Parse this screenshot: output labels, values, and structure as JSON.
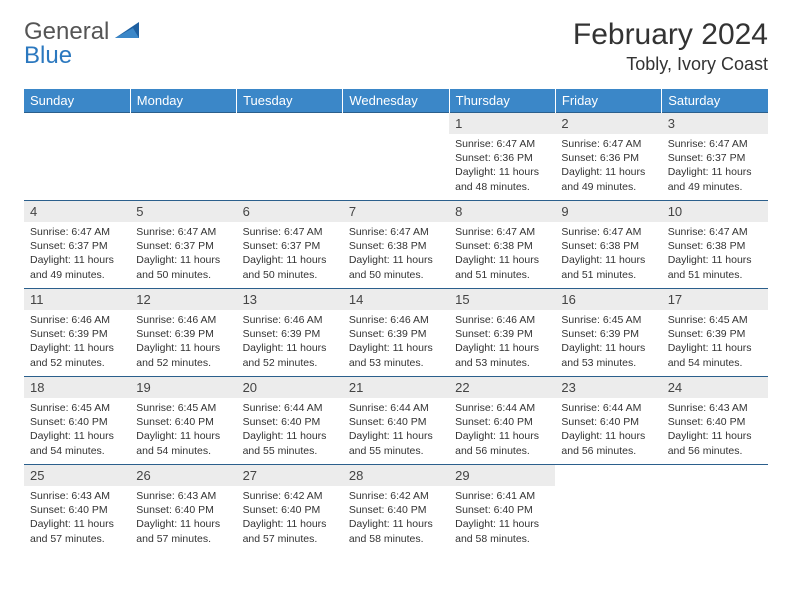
{
  "brand": {
    "part1": "General",
    "part2": "Blue"
  },
  "title": "February 2024",
  "location": "Tobly, Ivory Coast",
  "colors": {
    "header_bg": "#3b87c8",
    "header_text": "#ffffff",
    "row_border": "#2b5f8c",
    "daynum_bg": "#ececec",
    "brand_blue": "#2b78bf",
    "page_bg": "#ffffff",
    "text": "#333333"
  },
  "weekdays": [
    "Sunday",
    "Monday",
    "Tuesday",
    "Wednesday",
    "Thursday",
    "Friday",
    "Saturday"
  ],
  "layout": {
    "columns": 7,
    "first_day_index": 4,
    "num_days": 29
  },
  "days": [
    {
      "n": 1,
      "sunrise": "6:47 AM",
      "sunset": "6:36 PM",
      "daylight": "11 hours and 48 minutes."
    },
    {
      "n": 2,
      "sunrise": "6:47 AM",
      "sunset": "6:36 PM",
      "daylight": "11 hours and 49 minutes."
    },
    {
      "n": 3,
      "sunrise": "6:47 AM",
      "sunset": "6:37 PM",
      "daylight": "11 hours and 49 minutes."
    },
    {
      "n": 4,
      "sunrise": "6:47 AM",
      "sunset": "6:37 PM",
      "daylight": "11 hours and 49 minutes."
    },
    {
      "n": 5,
      "sunrise": "6:47 AM",
      "sunset": "6:37 PM",
      "daylight": "11 hours and 50 minutes."
    },
    {
      "n": 6,
      "sunrise": "6:47 AM",
      "sunset": "6:37 PM",
      "daylight": "11 hours and 50 minutes."
    },
    {
      "n": 7,
      "sunrise": "6:47 AM",
      "sunset": "6:38 PM",
      "daylight": "11 hours and 50 minutes."
    },
    {
      "n": 8,
      "sunrise": "6:47 AM",
      "sunset": "6:38 PM",
      "daylight": "11 hours and 51 minutes."
    },
    {
      "n": 9,
      "sunrise": "6:47 AM",
      "sunset": "6:38 PM",
      "daylight": "11 hours and 51 minutes."
    },
    {
      "n": 10,
      "sunrise": "6:47 AM",
      "sunset": "6:38 PM",
      "daylight": "11 hours and 51 minutes."
    },
    {
      "n": 11,
      "sunrise": "6:46 AM",
      "sunset": "6:39 PM",
      "daylight": "11 hours and 52 minutes."
    },
    {
      "n": 12,
      "sunrise": "6:46 AM",
      "sunset": "6:39 PM",
      "daylight": "11 hours and 52 minutes."
    },
    {
      "n": 13,
      "sunrise": "6:46 AM",
      "sunset": "6:39 PM",
      "daylight": "11 hours and 52 minutes."
    },
    {
      "n": 14,
      "sunrise": "6:46 AM",
      "sunset": "6:39 PM",
      "daylight": "11 hours and 53 minutes."
    },
    {
      "n": 15,
      "sunrise": "6:46 AM",
      "sunset": "6:39 PM",
      "daylight": "11 hours and 53 minutes."
    },
    {
      "n": 16,
      "sunrise": "6:45 AM",
      "sunset": "6:39 PM",
      "daylight": "11 hours and 53 minutes."
    },
    {
      "n": 17,
      "sunrise": "6:45 AM",
      "sunset": "6:39 PM",
      "daylight": "11 hours and 54 minutes."
    },
    {
      "n": 18,
      "sunrise": "6:45 AM",
      "sunset": "6:40 PM",
      "daylight": "11 hours and 54 minutes."
    },
    {
      "n": 19,
      "sunrise": "6:45 AM",
      "sunset": "6:40 PM",
      "daylight": "11 hours and 54 minutes."
    },
    {
      "n": 20,
      "sunrise": "6:44 AM",
      "sunset": "6:40 PM",
      "daylight": "11 hours and 55 minutes."
    },
    {
      "n": 21,
      "sunrise": "6:44 AM",
      "sunset": "6:40 PM",
      "daylight": "11 hours and 55 minutes."
    },
    {
      "n": 22,
      "sunrise": "6:44 AM",
      "sunset": "6:40 PM",
      "daylight": "11 hours and 56 minutes."
    },
    {
      "n": 23,
      "sunrise": "6:44 AM",
      "sunset": "6:40 PM",
      "daylight": "11 hours and 56 minutes."
    },
    {
      "n": 24,
      "sunrise": "6:43 AM",
      "sunset": "6:40 PM",
      "daylight": "11 hours and 56 minutes."
    },
    {
      "n": 25,
      "sunrise": "6:43 AM",
      "sunset": "6:40 PM",
      "daylight": "11 hours and 57 minutes."
    },
    {
      "n": 26,
      "sunrise": "6:43 AM",
      "sunset": "6:40 PM",
      "daylight": "11 hours and 57 minutes."
    },
    {
      "n": 27,
      "sunrise": "6:42 AM",
      "sunset": "6:40 PM",
      "daylight": "11 hours and 57 minutes."
    },
    {
      "n": 28,
      "sunrise": "6:42 AM",
      "sunset": "6:40 PM",
      "daylight": "11 hours and 58 minutes."
    },
    {
      "n": 29,
      "sunrise": "6:41 AM",
      "sunset": "6:40 PM",
      "daylight": "11 hours and 58 minutes."
    }
  ],
  "labels": {
    "sunrise": "Sunrise:",
    "sunset": "Sunset:",
    "daylight": "Daylight:"
  }
}
